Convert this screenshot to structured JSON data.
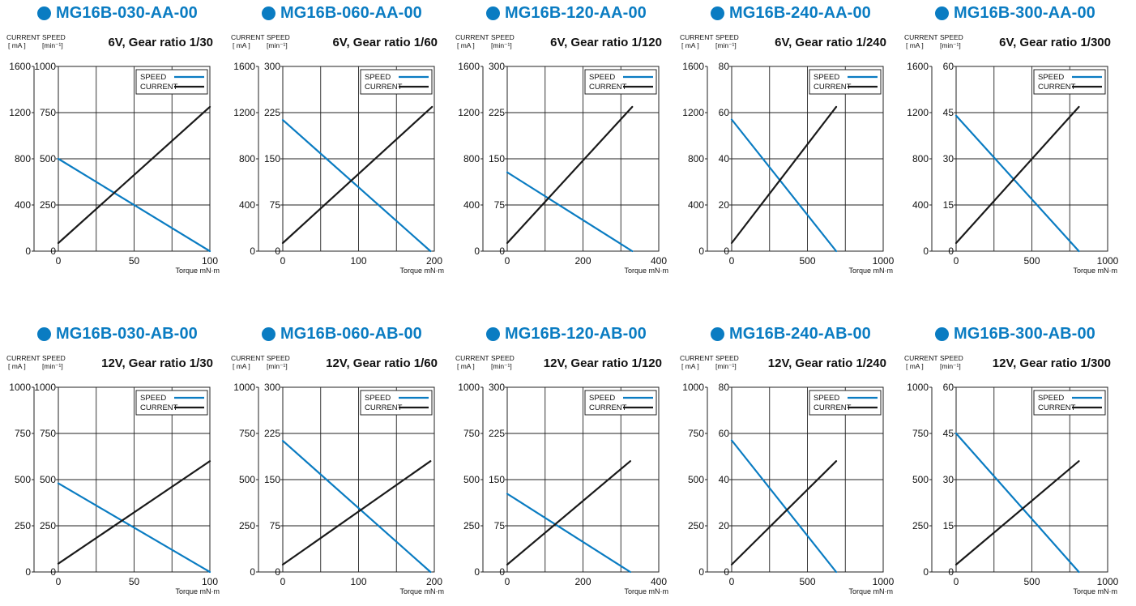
{
  "colors": {
    "speed": "#0a7cc2",
    "current": "#1a1a1a",
    "accent": "#0a7cc2",
    "grid": "#222222"
  },
  "unit_labels": {
    "current": "CURRENT",
    "current_unit": "[ mA ]",
    "speed": "SPEED",
    "speed_unit": "[min⁻¹]",
    "torque": "Torque mN·m"
  },
  "legend": {
    "speed": "SPEED",
    "current": "CURRENT"
  },
  "chart_data": [
    {
      "model": "MG16B-030-AA-00",
      "type": "line",
      "title": "6V, Gear ratio 1/30",
      "x_ticks": [
        "0",
        "50",
        "100"
      ],
      "xlim": [
        0,
        100
      ],
      "xlabel": "Torque mN·m",
      "speed_ticks": [
        "0",
        "250",
        "500",
        "750",
        "1000"
      ],
      "speed_lim": [
        0,
        1000
      ],
      "current_ticks": [
        "0",
        "400",
        "800",
        "1200",
        "1600"
      ],
      "current_lim": [
        0,
        1600
      ],
      "series": [
        {
          "name": "SPEED",
          "x": [
            0,
            100
          ],
          "y": [
            500,
            0
          ]
        },
        {
          "name": "CURRENT",
          "x": [
            0,
            100
          ],
          "y": [
            70,
            1250
          ]
        }
      ]
    },
    {
      "model": "MG16B-060-AA-00",
      "type": "line",
      "title": "6V, Gear ratio 1/60",
      "x_ticks": [
        "0",
        "100",
        "200"
      ],
      "xlim": [
        0,
        200
      ],
      "xlabel": "Torque mN·m",
      "speed_ticks": [
        "0",
        "75",
        "150",
        "225",
        "300"
      ],
      "speed_lim": [
        0,
        300
      ],
      "current_ticks": [
        "0",
        "400",
        "800",
        "1200",
        "1600"
      ],
      "current_lim": [
        0,
        1600
      ],
      "series": [
        {
          "name": "SPEED",
          "x": [
            0,
            195
          ],
          "y": [
            213,
            0
          ]
        },
        {
          "name": "CURRENT",
          "x": [
            0,
            197
          ],
          "y": [
            70,
            1250
          ]
        }
      ]
    },
    {
      "model": "MG16B-120-AA-00",
      "type": "line",
      "title": "6V, Gear ratio 1/120",
      "x_ticks": [
        "0",
        "200",
        "400"
      ],
      "xlim": [
        0,
        400
      ],
      "xlabel": "Torque mN·m",
      "speed_ticks": [
        "0",
        "75",
        "150",
        "225",
        "300"
      ],
      "speed_lim": [
        0,
        300
      ],
      "current_ticks": [
        "0",
        "400",
        "800",
        "1200",
        "1600"
      ],
      "current_lim": [
        0,
        1600
      ],
      "series": [
        {
          "name": "SPEED",
          "x": [
            0,
            330
          ],
          "y": [
            128,
            0
          ]
        },
        {
          "name": "CURRENT",
          "x": [
            0,
            330
          ],
          "y": [
            70,
            1250
          ]
        }
      ]
    },
    {
      "model": "MG16B-240-AA-00",
      "type": "line",
      "title": "6V, Gear ratio 1/240",
      "x_ticks": [
        "0",
        "500",
        "1000"
      ],
      "xlim": [
        0,
        1000
      ],
      "xlabel": "Torque mN·m",
      "speed_ticks": [
        "0",
        "20",
        "40",
        "60",
        "80"
      ],
      "speed_lim": [
        0,
        80
      ],
      "current_ticks": [
        "0",
        "400",
        "800",
        "1200",
        "1600"
      ],
      "current_lim": [
        0,
        1600
      ],
      "series": [
        {
          "name": "SPEED",
          "x": [
            0,
            690
          ],
          "y": [
            57,
            0
          ]
        },
        {
          "name": "CURRENT",
          "x": [
            0,
            690
          ],
          "y": [
            70,
            1250
          ]
        }
      ]
    },
    {
      "model": "MG16B-300-AA-00",
      "type": "line",
      "title": "6V, Gear ratio 1/300",
      "x_ticks": [
        "0",
        "500",
        "1000"
      ],
      "xlim": [
        0,
        1000
      ],
      "xlabel": "Torque mN·m",
      "speed_ticks": [
        "0",
        "15",
        "30",
        "45",
        "60"
      ],
      "speed_lim": [
        0,
        60
      ],
      "current_ticks": [
        "0",
        "400",
        "800",
        "1200",
        "1600"
      ],
      "current_lim": [
        0,
        1600
      ],
      "series": [
        {
          "name": "SPEED",
          "x": [
            0,
            810
          ],
          "y": [
            44,
            0
          ]
        },
        {
          "name": "CURRENT",
          "x": [
            0,
            810
          ],
          "y": [
            70,
            1250
          ]
        }
      ]
    },
    {
      "model": "MG16B-030-AB-00",
      "type": "line",
      "title": "12V, Gear ratio 1/30",
      "x_ticks": [
        "0",
        "50",
        "100"
      ],
      "xlim": [
        0,
        100
      ],
      "xlabel": "Torque mN·m",
      "speed_ticks": [
        "0",
        "250",
        "500",
        "750",
        "1000"
      ],
      "speed_lim": [
        0,
        1000
      ],
      "current_ticks": [
        "0",
        "250",
        "500",
        "750",
        "1000"
      ],
      "current_lim": [
        0,
        1000
      ],
      "series": [
        {
          "name": "SPEED",
          "x": [
            0,
            100
          ],
          "y": [
            480,
            0
          ]
        },
        {
          "name": "CURRENT",
          "x": [
            0,
            100
          ],
          "y": [
            45,
            600
          ]
        }
      ]
    },
    {
      "model": "MG16B-060-AB-00",
      "type": "line",
      "title": "12V, Gear ratio 1/60",
      "x_ticks": [
        "0",
        "100",
        "200"
      ],
      "xlim": [
        0,
        200
      ],
      "xlabel": "Torque mN·m",
      "speed_ticks": [
        "0",
        "75",
        "150",
        "225",
        "300"
      ],
      "speed_lim": [
        0,
        300
      ],
      "current_ticks": [
        "0",
        "250",
        "500",
        "750",
        "1000"
      ],
      "current_lim": [
        0,
        1000
      ],
      "series": [
        {
          "name": "SPEED",
          "x": [
            0,
            195
          ],
          "y": [
            213,
            0
          ]
        },
        {
          "name": "CURRENT",
          "x": [
            0,
            195
          ],
          "y": [
            40,
            600
          ]
        }
      ]
    },
    {
      "model": "MG16B-120-AB-00",
      "type": "line",
      "title": "12V, Gear ratio 1/120",
      "x_ticks": [
        "0",
        "200",
        "400"
      ],
      "xlim": [
        0,
        400
      ],
      "xlabel": "Torque mN·m",
      "speed_ticks": [
        "0",
        "75",
        "150",
        "225",
        "300"
      ],
      "speed_lim": [
        0,
        300
      ],
      "current_ticks": [
        "0",
        "250",
        "500",
        "750",
        "1000"
      ],
      "current_lim": [
        0,
        1000
      ],
      "series": [
        {
          "name": "SPEED",
          "x": [
            0,
            325
          ],
          "y": [
            127,
            0
          ]
        },
        {
          "name": "CURRENT",
          "x": [
            0,
            325
          ],
          "y": [
            40,
            600
          ]
        }
      ]
    },
    {
      "model": "MG16B-240-AB-00",
      "type": "line",
      "title": "12V, Gear ratio 1/240",
      "x_ticks": [
        "0",
        "500",
        "1000"
      ],
      "xlim": [
        0,
        1000
      ],
      "xlabel": "Torque mN·m",
      "speed_ticks": [
        "0",
        "20",
        "40",
        "60",
        "80"
      ],
      "speed_lim": [
        0,
        80
      ],
      "current_ticks": [
        "0",
        "250",
        "500",
        "750",
        "1000"
      ],
      "current_lim": [
        0,
        1000
      ],
      "series": [
        {
          "name": "SPEED",
          "x": [
            0,
            690
          ],
          "y": [
            57,
            0
          ]
        },
        {
          "name": "CURRENT",
          "x": [
            0,
            690
          ],
          "y": [
            40,
            600
          ]
        }
      ]
    },
    {
      "model": "MG16B-300-AB-00",
      "type": "line",
      "title": "12V, Gear ratio 1/300",
      "x_ticks": [
        "0",
        "500",
        "1000"
      ],
      "xlim": [
        0,
        1000
      ],
      "xlabel": "Torque mN·m",
      "speed_ticks": [
        "0",
        "15",
        "30",
        "45",
        "60"
      ],
      "speed_lim": [
        0,
        60
      ],
      "current_ticks": [
        "0",
        "250",
        "500",
        "750",
        "1000"
      ],
      "current_lim": [
        0,
        1000
      ],
      "series": [
        {
          "name": "SPEED",
          "x": [
            0,
            810
          ],
          "y": [
            45,
            0
          ]
        },
        {
          "name": "CURRENT",
          "x": [
            0,
            810
          ],
          "y": [
            40,
            600
          ]
        }
      ]
    }
  ]
}
